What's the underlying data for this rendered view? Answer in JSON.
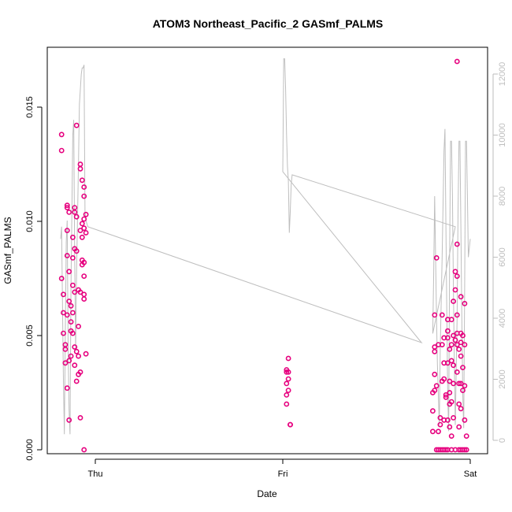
{
  "chart_data": {
    "type": "scatter",
    "title": "ATOM3 Northeast_Pacific_2 GASmf_PALMS",
    "xlabel": "Date",
    "ylabel": "GASmf_PALMS",
    "x_tick_labels": [
      "Thu",
      "Fri",
      "Sat"
    ],
    "x_range_days": [
      -0.2,
      2.0
    ],
    "ylim": [
      0,
      0.0172
    ],
    "y_ticks": [
      0.0,
      0.005,
      0.01,
      0.015
    ],
    "y_tick_labels": [
      "0.000",
      "0.005",
      "0.010",
      "0.015"
    ],
    "y2_ylim": [
      0,
      12600
    ],
    "y2_ticks": [
      0,
      2000,
      4000,
      6000,
      8000,
      10000,
      12000
    ],
    "y2_tick_labels": [
      "0",
      "2000",
      "4000",
      "6000",
      "8000",
      "10000",
      "12000"
    ],
    "grid": false,
    "colors": {
      "points": "#e6007e",
      "altitude_line": "#bebebe",
      "axes": "#000000"
    },
    "series": [
      {
        "axis": "left",
        "style": "points",
        "points": [
          [
            -0.18,
            0.0138
          ],
          [
            -0.18,
            0.0131
          ],
          [
            -0.18,
            0.0075
          ],
          [
            -0.17,
            0.0068
          ],
          [
            -0.17,
            0.006
          ],
          [
            -0.17,
            0.0051
          ],
          [
            -0.16,
            0.0046
          ],
          [
            -0.16,
            0.0044
          ],
          [
            -0.16,
            0.0038
          ],
          [
            -0.15,
            0.0107
          ],
          [
            -0.15,
            0.0106
          ],
          [
            -0.15,
            0.0096
          ],
          [
            -0.15,
            0.0085
          ],
          [
            -0.15,
            0.0059
          ],
          [
            -0.15,
            0.0027
          ],
          [
            -0.14,
            0.0104
          ],
          [
            -0.14,
            0.0078
          ],
          [
            -0.14,
            0.0065
          ],
          [
            -0.14,
            0.0039
          ],
          [
            -0.14,
            0.0013
          ],
          [
            -0.13,
            0.0063
          ],
          [
            -0.13,
            0.0056
          ],
          [
            -0.13,
            0.0052
          ],
          [
            -0.13,
            0.0041
          ],
          [
            -0.12,
            0.0093
          ],
          [
            -0.12,
            0.0084
          ],
          [
            -0.12,
            0.0072
          ],
          [
            -0.12,
            0.006
          ],
          [
            -0.12,
            0.0051
          ],
          [
            -0.11,
            0.0106
          ],
          [
            -0.11,
            0.0104
          ],
          [
            -0.11,
            0.0088
          ],
          [
            -0.11,
            0.0069
          ],
          [
            -0.11,
            0.0045
          ],
          [
            -0.11,
            0.0037
          ],
          [
            -0.1,
            0.0142
          ],
          [
            -0.1,
            0.0102
          ],
          [
            -0.1,
            0.0087
          ],
          [
            -0.1,
            0.0043
          ],
          [
            -0.1,
            0.003
          ],
          [
            -0.09,
            0.007
          ],
          [
            -0.09,
            0.0054
          ],
          [
            -0.09,
            0.0041
          ],
          [
            -0.09,
            0.0033
          ],
          [
            -0.08,
            0.0125
          ],
          [
            -0.08,
            0.0123
          ],
          [
            -0.08,
            0.0096
          ],
          [
            -0.08,
            0.0069
          ],
          [
            -0.08,
            0.0034
          ],
          [
            -0.08,
            0.0014
          ],
          [
            -0.07,
            0.0118
          ],
          [
            -0.07,
            0.0099
          ],
          [
            -0.07,
            0.0093
          ],
          [
            -0.07,
            0.0083
          ],
          [
            -0.07,
            0.0081
          ],
          [
            -0.06,
            0.0115
          ],
          [
            -0.06,
            0.0111
          ],
          [
            -0.06,
            0.0101
          ],
          [
            -0.06,
            0.0097
          ],
          [
            -0.06,
            0.0082
          ],
          [
            -0.06,
            0.0076
          ],
          [
            -0.06,
            0.0068
          ],
          [
            -0.06,
            0.0066
          ],
          [
            -0.05,
            0.0103
          ],
          [
            -0.05,
            0.0095
          ],
          [
            -0.05,
            0.0042
          ],
          [
            -0.06,
            0.0
          ],
          [
            1.02,
            0.0035
          ],
          [
            1.02,
            0.0034
          ],
          [
            1.02,
            0.0029
          ],
          [
            1.02,
            0.0024
          ],
          [
            1.02,
            0.002
          ],
          [
            1.03,
            0.0034
          ],
          [
            1.03,
            0.0031
          ],
          [
            1.03,
            0.0026
          ],
          [
            1.03,
            0.004
          ],
          [
            1.04,
            0.0011
          ],
          [
            1.04,
            0.0011
          ],
          [
            1.8,
            0.0025
          ],
          [
            1.8,
            0.0017
          ],
          [
            1.8,
            0.0008
          ],
          [
            1.81,
            0.0059
          ],
          [
            1.81,
            0.0045
          ],
          [
            1.81,
            0.0043
          ],
          [
            1.81,
            0.0033
          ],
          [
            1.81,
            0.0026
          ],
          [
            1.82,
            0.0084
          ],
          [
            1.82,
            0.0028
          ],
          [
            1.82,
            0.0
          ],
          [
            1.83,
            0.0046
          ],
          [
            1.83,
            0.0008
          ],
          [
            1.83,
            0.0
          ],
          [
            1.84,
            0.0014
          ],
          [
            1.84,
            0.0011
          ],
          [
            1.84,
            0.0
          ],
          [
            1.85,
            0.0059
          ],
          [
            1.85,
            0.0046
          ],
          [
            1.85,
            0.003
          ],
          [
            1.85,
            0.0
          ],
          [
            1.86,
            0.0049
          ],
          [
            1.86,
            0.0038
          ],
          [
            1.86,
            0.0031
          ],
          [
            1.86,
            0.0013
          ],
          [
            1.86,
            0.0
          ],
          [
            1.87,
            0.0024
          ],
          [
            1.87,
            0.0023
          ],
          [
            1.87,
            0.0
          ],
          [
            1.88,
            0.0049
          ],
          [
            1.88,
            0.0052
          ],
          [
            1.88,
            0.0057
          ],
          [
            1.88,
            0.0038
          ],
          [
            1.88,
            0.0013
          ],
          [
            1.88,
            0.0
          ],
          [
            1.89,
            0.0044
          ],
          [
            1.89,
            0.003
          ],
          [
            1.89,
            0.0025
          ],
          [
            1.89,
            0.002
          ],
          [
            1.89,
            0.001
          ],
          [
            1.9,
            0.0057
          ],
          [
            1.9,
            0.0046
          ],
          [
            1.9,
            0.0039
          ],
          [
            1.9,
            0.0021
          ],
          [
            1.9,
            0.0006
          ],
          [
            1.9,
            0.0
          ],
          [
            1.91,
            0.0065
          ],
          [
            1.91,
            0.005
          ],
          [
            1.91,
            0.0037
          ],
          [
            1.91,
            0.0029
          ],
          [
            1.91,
            0.0014
          ],
          [
            1.92,
            0.0078
          ],
          [
            1.92,
            0.007
          ],
          [
            1.92,
            0.0048
          ],
          [
            1.92,
            0.0
          ],
          [
            1.93,
            0.017
          ],
          [
            1.93,
            0.009
          ],
          [
            1.93,
            0.0076
          ],
          [
            1.93,
            0.0059
          ],
          [
            1.93,
            0.0051
          ],
          [
            1.93,
            0.0046
          ],
          [
            1.93,
            0.0034
          ],
          [
            1.94,
            0.0044
          ],
          [
            1.94,
            0.0029
          ],
          [
            1.94,
            0.002
          ],
          [
            1.94,
            0.001
          ],
          [
            1.94,
            0.0
          ],
          [
            1.95,
            0.0067
          ],
          [
            1.95,
            0.0051
          ],
          [
            1.95,
            0.0047
          ],
          [
            1.95,
            0.0041
          ],
          [
            1.95,
            0.0029
          ],
          [
            1.95,
            0.0018
          ],
          [
            1.95,
            0.0
          ],
          [
            1.96,
            0.005
          ],
          [
            1.96,
            0.0036
          ],
          [
            1.96,
            0.0026
          ],
          [
            1.96,
            0.0
          ],
          [
            1.97,
            0.0064
          ],
          [
            1.97,
            0.0046
          ],
          [
            1.97,
            0.0028
          ],
          [
            1.97,
            0.0013
          ],
          [
            1.97,
            0.0
          ],
          [
            1.98,
            0.0
          ],
          [
            1.98,
            0.0006
          ]
        ]
      },
      {
        "axis": "right",
        "style": "line",
        "points": [
          [
            -0.185,
            6600
          ],
          [
            -0.18,
            7000
          ],
          [
            -0.175,
            4500
          ],
          [
            -0.17,
            2000
          ],
          [
            -0.165,
            200
          ],
          [
            -0.16,
            3500
          ],
          [
            -0.155,
            6500
          ],
          [
            -0.15,
            7200
          ],
          [
            -0.145,
            3000
          ],
          [
            -0.14,
            1000
          ],
          [
            -0.135,
            200
          ],
          [
            -0.13,
            5000
          ],
          [
            -0.12,
            10000
          ],
          [
            -0.115,
            10500
          ],
          [
            -0.11,
            6000
          ],
          [
            -0.105,
            3000
          ],
          [
            -0.1,
            5500
          ],
          [
            -0.09,
            9000
          ],
          [
            -0.085,
            11000
          ],
          [
            -0.08,
            11500
          ],
          [
            -0.075,
            12000
          ],
          [
            -0.07,
            12200
          ],
          [
            -0.065,
            12200
          ],
          [
            -0.06,
            12300
          ],
          [
            -0.055,
            7500
          ],
          [
            -0.05,
            7200
          ],
          [
            -0.04,
            7000
          ],
          [
            1.74,
            3200
          ],
          [
            1.0,
            8800
          ],
          [
            1.005,
            12500
          ],
          [
            1.01,
            12500
          ],
          [
            1.015,
            11500
          ],
          [
            1.02,
            10000
          ],
          [
            1.025,
            9000
          ],
          [
            1.03,
            8500
          ],
          [
            1.035,
            6800
          ],
          [
            1.04,
            7500
          ],
          [
            1.045,
            8400
          ],
          [
            1.05,
            8700
          ],
          [
            1.92,
            7000
          ],
          [
            1.8,
            3500
          ],
          [
            1.805,
            5500
          ],
          [
            1.81,
            8000
          ],
          [
            1.815,
            6000
          ],
          [
            1.82,
            4000
          ],
          [
            1.825,
            2500
          ],
          [
            1.83,
            1500
          ],
          [
            1.835,
            500
          ],
          [
            1.84,
            3000
          ],
          [
            1.85,
            6000
          ],
          [
            1.86,
            9500
          ],
          [
            1.865,
            10200
          ],
          [
            1.87,
            7000
          ],
          [
            1.875,
            4000
          ],
          [
            1.88,
            1500
          ],
          [
            1.885,
            300
          ],
          [
            1.89,
            6000
          ],
          [
            1.895,
            9800
          ],
          [
            1.9,
            9800
          ],
          [
            1.905,
            8000
          ],
          [
            1.91,
            5000
          ],
          [
            1.915,
            2500
          ],
          [
            1.92,
            500
          ],
          [
            1.93,
            4000
          ],
          [
            1.935,
            7500
          ],
          [
            1.94,
            9800
          ],
          [
            1.945,
            9800
          ],
          [
            1.95,
            7000
          ],
          [
            1.955,
            4000
          ],
          [
            1.96,
            1500
          ],
          [
            1.965,
            400
          ],
          [
            1.97,
            5000
          ],
          [
            1.975,
            9800
          ],
          [
            1.98,
            9800
          ],
          [
            1.985,
            8000
          ],
          [
            1.99,
            6000
          ],
          [
            2.0,
            6600
          ]
        ]
      }
    ]
  }
}
